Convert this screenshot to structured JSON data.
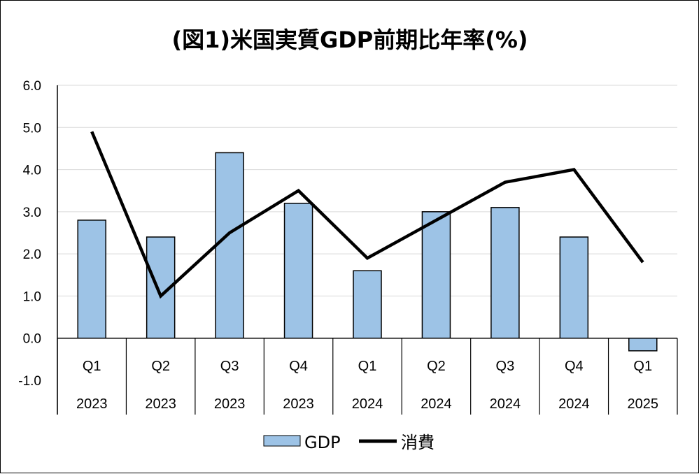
{
  "chart_data": {
    "type": "bar+line",
    "title": "(図1)米国実質GDP前期比年率(%)",
    "categories": [
      "Q1",
      "Q2",
      "Q3",
      "Q4",
      "Q1",
      "Q2",
      "Q3",
      "Q4",
      "Q1"
    ],
    "years": [
      "2023",
      "2023",
      "2023",
      "2023",
      "2024",
      "2024",
      "2024",
      "2024",
      "2025"
    ],
    "series": [
      {
        "name": "GDP",
        "kind": "bar",
        "color": "#9dc3e6",
        "values": [
          2.8,
          2.4,
          4.4,
          3.2,
          1.6,
          3.0,
          3.1,
          2.4,
          -0.3
        ]
      },
      {
        "name": "消費",
        "kind": "line",
        "color": "#000000",
        "values": [
          4.9,
          1.0,
          2.5,
          3.5,
          1.9,
          2.8,
          3.7,
          4.0,
          1.8
        ]
      }
    ],
    "ylim": [
      -1.0,
      6.0
    ],
    "yticks": [
      "6.0",
      "5.0",
      "4.0",
      "3.0",
      "2.0",
      "1.0",
      "0.0",
      "-1.0"
    ],
    "grid": true,
    "legend_position": "bottom"
  }
}
